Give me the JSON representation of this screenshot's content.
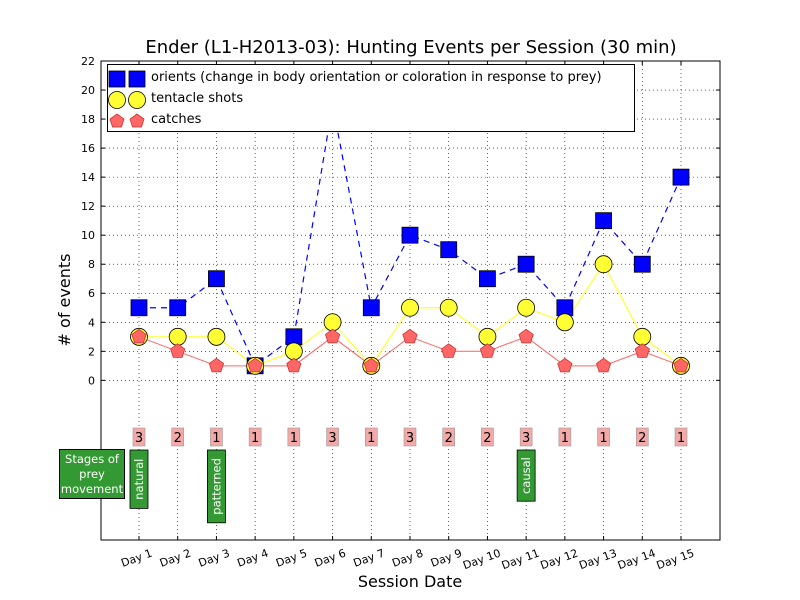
{
  "chart_data": {
    "type": "line",
    "title": "Ender (L1-H2013-03): Hunting Events per Session (30 min)",
    "xlabel": "Session Date",
    "ylabel": "# of events",
    "categories": [
      "Day 1",
      "Day 2",
      "Day 3",
      "Day 4",
      "Day 5",
      "Day 6",
      "Day 7",
      "Day 8",
      "Day 9",
      "Day 10",
      "Day 11",
      "Day 12",
      "Day 13",
      "Day 14",
      "Day 15"
    ],
    "yticks": [
      0,
      2,
      4,
      6,
      8,
      10,
      12,
      14,
      16,
      18,
      20,
      22
    ],
    "ylim": [
      -11,
      22
    ],
    "grid": true,
    "legend_position": "top-left",
    "series": [
      {
        "name": "orients (change in body orientation or coloration in response to prey)",
        "marker": "square",
        "color": "#0000ff",
        "line": "dashed",
        "values": [
          5,
          5,
          7,
          1,
          3,
          19,
          5,
          10,
          9,
          7,
          8,
          5,
          11,
          8,
          14
        ]
      },
      {
        "name": "tentacle shots",
        "marker": "circle",
        "color": "#ffff33",
        "line": "solid",
        "values": [
          3,
          3,
          3,
          1,
          2,
          4,
          1,
          5,
          5,
          3,
          5,
          4,
          8,
          3,
          1
        ]
      },
      {
        "name": "catches",
        "marker": "pentagon",
        "color": "#ff6666",
        "line": "solid",
        "values": [
          3,
          2,
          1,
          1,
          1,
          3,
          1,
          3,
          2,
          2,
          3,
          1,
          1,
          2,
          1
        ]
      }
    ],
    "catch_labels": [
      "3",
      "2",
      "1",
      "1",
      "1",
      "3",
      "1",
      "3",
      "2",
      "2",
      "3",
      "1",
      "1",
      "2",
      "1"
    ],
    "stages": {
      "title": "Stages of prey movement",
      "items": [
        {
          "day_index": 0,
          "label": "natural"
        },
        {
          "day_index": 2,
          "label": "patterned"
        },
        {
          "day_index": 10,
          "label": "causal"
        }
      ]
    }
  }
}
